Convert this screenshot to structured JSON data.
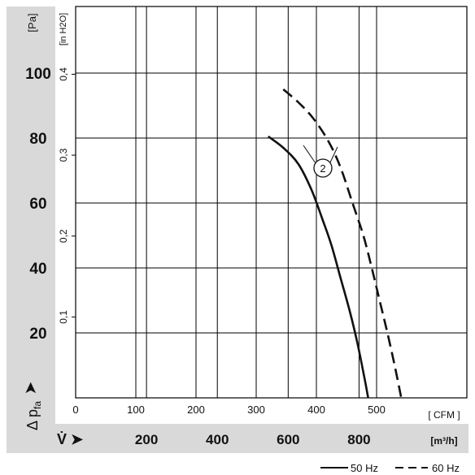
{
  "chart_data": {
    "type": "line",
    "title": "",
    "ylabel_left_unit": "[Pa]",
    "ylabel_inh2o_unit": "[in H2O]",
    "ylabel_symbol": "Δ p",
    "ylabel_symbol_sub": "fa",
    "xlabel_cfm_unit": "[ CFM ]",
    "xlabel_m3h_unit": "[m³/h]",
    "xlabel_symbol": "V̇ ➤",
    "y_pa_ticks": [
      "20",
      "40",
      "60",
      "80",
      "100"
    ],
    "y_inh2o_ticks": [
      "0,1",
      "0,2",
      "0,3",
      "0,4"
    ],
    "x_cfm_ticks": [
      "0",
      "100",
      "200",
      "300",
      "400",
      "500"
    ],
    "x_m3h_ticks": [
      "200",
      "400",
      "600",
      "800"
    ],
    "xlim_cfm": [
      0,
      590
    ],
    "ylim_pa": [
      0,
      108
    ],
    "grid": true,
    "curve_label": "2",
    "series": [
      {
        "name": "50 Hz",
        "style": "solid",
        "points_cfm_pa": [
          [
            320,
            80.5
          ],
          [
            345,
            77
          ],
          [
            370,
            72
          ],
          [
            392,
            64
          ],
          [
            410,
            55
          ],
          [
            425,
            47
          ],
          [
            440,
            37
          ],
          [
            455,
            27
          ],
          [
            468,
            17
          ],
          [
            480,
            6
          ],
          [
            486,
            0
          ]
        ]
      },
      {
        "name": "60 Hz",
        "style": "dashed",
        "points_cfm_pa": [
          [
            345,
            95
          ],
          [
            370,
            91
          ],
          [
            395,
            86
          ],
          [
            420,
            79
          ],
          [
            440,
            71
          ],
          [
            460,
            60
          ],
          [
            478,
            50
          ],
          [
            492,
            40
          ],
          [
            505,
            30
          ],
          [
            518,
            20
          ],
          [
            530,
            10
          ],
          [
            541,
            0
          ]
        ]
      }
    ],
    "legend": [
      {
        "label": "50 Hz",
        "style": "solid"
      },
      {
        "label": "60 Hz",
        "style": "dashed"
      }
    ],
    "legend_position": "bottom-right",
    "colors": {
      "line": "#111111",
      "grid": "#000000",
      "band": "#d9d9d9"
    }
  }
}
